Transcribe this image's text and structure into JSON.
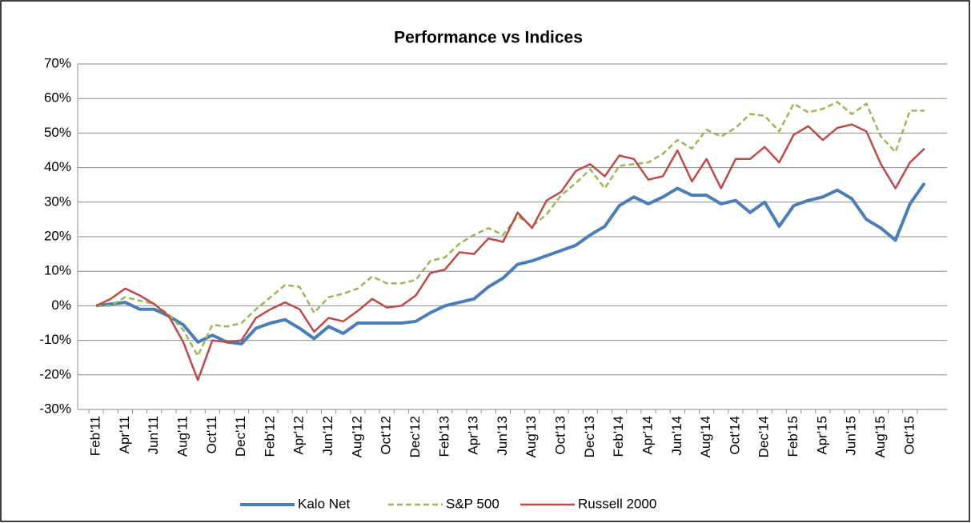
{
  "chart_data": {
    "type": "line",
    "title": "Performance vs Indices",
    "categories": [
      "Feb'11",
      null,
      "Apr'11",
      null,
      "Jun'11",
      null,
      "Aug'11",
      null,
      "Oct'11",
      null,
      "Dec'11",
      null,
      "Feb'12",
      null,
      "Apr'12",
      null,
      "Jun'12",
      null,
      "Aug'12",
      null,
      "Oct'12",
      null,
      "Dec'12",
      null,
      "Feb'13",
      null,
      "Apr'13",
      null,
      "Jun'13",
      null,
      "Aug'13",
      null,
      "Oct'13",
      null,
      "Dec'13",
      null,
      "Feb'14",
      null,
      "Apr'14",
      null,
      "Jun'14",
      null,
      "Aug'14",
      null,
      "Oct'14",
      null,
      "Dec'14",
      null,
      "Feb'15",
      null,
      "Apr'15",
      null,
      "Jun'15",
      null,
      "Aug'15",
      null,
      "Oct'15",
      null
    ],
    "series": [
      {
        "name": "Kalo Net",
        "color": "#4a7ebb",
        "width": 4,
        "dashed": false,
        "values": [
          0,
          0.5,
          1,
          -1,
          -1,
          -3,
          -5.5,
          -10.5,
          -8.5,
          -10.5,
          -11,
          -6.5,
          -5,
          -4,
          -6.5,
          -9.5,
          -6,
          -8,
          -5,
          -5,
          -5,
          -5,
          -4.5,
          -2,
          0,
          1,
          2,
          5.5,
          8,
          12,
          13,
          14.5,
          16,
          17.5,
          20.5,
          23,
          29,
          31.5,
          29.5,
          31.5,
          34,
          32,
          32,
          29.5,
          30.5,
          27,
          30,
          23,
          29,
          30.5,
          31.5,
          33.5,
          31,
          25,
          22.5,
          19,
          29.5,
          35.5
        ]
      },
      {
        "name": "S&P 500",
        "color": "#98b954",
        "width": 2.5,
        "dashed": true,
        "values": [
          0,
          0,
          2.5,
          1.5,
          0.5,
          -2.5,
          -7,
          -14.5,
          -5.5,
          -6,
          -5,
          -1,
          2.5,
          6,
          5.5,
          -2,
          2.5,
          3.5,
          5,
          8.5,
          6.5,
          6.5,
          7.5,
          13,
          14,
          18,
          20.5,
          22.5,
          20.5,
          26,
          23,
          26.5,
          32,
          35.5,
          39.5,
          34,
          40.5,
          41,
          41.5,
          44,
          48,
          45.5,
          51,
          49,
          51.5,
          55.5,
          55,
          50.5,
          58.5,
          56,
          57,
          59,
          55.5,
          58.5,
          49,
          44.5,
          56.5,
          56.5
        ]
      },
      {
        "name": "Russell 2000",
        "color": "#be4b48",
        "width": 2.5,
        "dashed": false,
        "values": [
          0,
          2,
          5,
          3,
          0.5,
          -3,
          -10.5,
          -21.5,
          -10,
          -10.5,
          -10,
          -3.5,
          -1,
          1,
          -1,
          -7.5,
          -3.5,
          -4.5,
          -1.5,
          2,
          -0.5,
          0,
          3,
          9.5,
          10.5,
          15.5,
          15,
          19.5,
          18.5,
          27,
          22.5,
          30.5,
          33,
          39,
          41,
          37.5,
          43.5,
          42.5,
          36.5,
          37.5,
          45,
          36,
          42.5,
          34,
          42.5,
          42.5,
          46,
          41.5,
          49.5,
          52,
          48,
          51.5,
          52.5,
          50.5,
          41,
          34,
          41.5,
          45.5
        ]
      }
    ],
    "ylim": [
      -30,
      70
    ],
    "yticks": [
      {
        "value": -30,
        "label": "-30%"
      },
      {
        "value": -20,
        "label": "-20%"
      },
      {
        "value": -10,
        "label": "-10%"
      },
      {
        "value": 0,
        "label": "0%"
      },
      {
        "value": 10,
        "label": "10%"
      },
      {
        "value": 20,
        "label": "20%"
      },
      {
        "value": 30,
        "label": "30%"
      },
      {
        "value": 40,
        "label": "40%"
      },
      {
        "value": 50,
        "label": "50%"
      },
      {
        "value": 60,
        "label": "60%"
      },
      {
        "value": 70,
        "label": "70%"
      }
    ],
    "grid": true,
    "legend": "bottom"
  }
}
